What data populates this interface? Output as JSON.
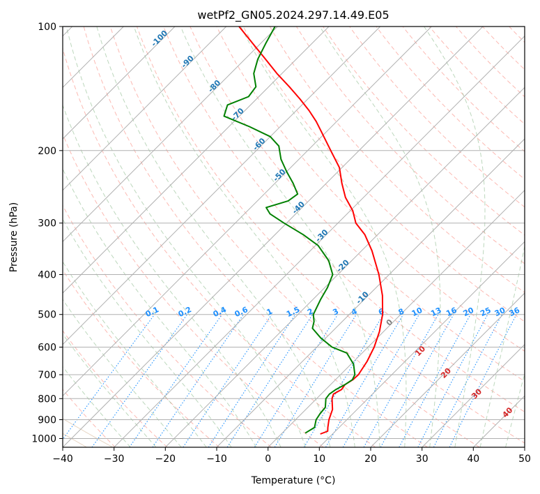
{
  "chart_data": {
    "type": "skew-t",
    "title": "wetPf2_GN05.2024.297.14.49.E05",
    "xlabel": "Temperature (°C)",
    "ylabel": "Pressure (hPa)",
    "xlim": [
      -40,
      50
    ],
    "ylim": [
      1050,
      100
    ],
    "y_scale": "log",
    "grid": true,
    "x_ticks": [
      -40,
      -30,
      -20,
      -10,
      0,
      10,
      20,
      30,
      40,
      50
    ],
    "x_tick_labels": [
      "−40",
      "−30",
      "−20",
      "−10",
      "0",
      "10",
      "20",
      "30",
      "40",
      "50"
    ],
    "y_ticks": [
      100,
      200,
      300,
      400,
      500,
      600,
      700,
      800,
      900,
      1000
    ],
    "y_tick_labels": [
      "100",
      "200",
      "300",
      "400",
      "500",
      "600",
      "700",
      "800",
      "900",
      "1000"
    ],
    "colors": {
      "temperature": "#ff0000",
      "dewpoint": "#008000",
      "isotherm_label": "#1f77b4",
      "mixing_ratio": "#1e90ff",
      "dry_adiabat": "#fa8072",
      "moist_adiabat": "#8fbc8f",
      "theta_e_label": "#d62728",
      "grid": "#b0b0b0"
    },
    "isotherm_labels": [
      "-100",
      "-90",
      "-80",
      "-70",
      "-60",
      "-50",
      "-40",
      "-30",
      "-20",
      "-10"
    ],
    "mixing_ratio_labels": [
      "0.1",
      "0.2",
      "0.4",
      "0.6",
      "1",
      "1.5",
      "2",
      "3",
      "4",
      "6",
      "8",
      "10",
      "13",
      "16",
      "20",
      "25",
      "30",
      "36"
    ],
    "theta_e_labels": [
      "0",
      "10",
      "20",
      "30",
      "40"
    ],
    "series": [
      {
        "key": "temperature",
        "pressure": [
          975,
          960,
          940,
          900,
          850,
          800,
          780,
          760,
          740,
          720,
          700,
          650,
          600,
          550,
          500,
          450,
          400,
          350,
          320,
          300,
          280,
          260,
          240,
          220,
          200,
          180,
          170,
          160,
          150,
          140,
          130,
          120,
          110,
          100
        ],
        "values": [
          7.6,
          8.5,
          7.8,
          6.5,
          5.2,
          3.0,
          2.4,
          3.1,
          2.8,
          3.4,
          3.5,
          2.6,
          1.2,
          -0.8,
          -3.5,
          -7.2,
          -12.0,
          -18.0,
          -22.5,
          -26.5,
          -29.5,
          -33.5,
          -37.0,
          -40.5,
          -45.5,
          -51.0,
          -54.0,
          -57.5,
          -61.5,
          -66.0,
          -71.0,
          -76.0,
          -81.5,
          -87.5
        ]
      },
      {
        "key": "dewpoint",
        "pressure": [
          970,
          940,
          900,
          870,
          840,
          800,
          780,
          760,
          740,
          720,
          700,
          660,
          620,
          600,
          570,
          540,
          520,
          500,
          460,
          430,
          400,
          370,
          340,
          320,
          300,
          285,
          275,
          265,
          255,
          240,
          225,
          210,
          195,
          185,
          175,
          165,
          155,
          148,
          140,
          130,
          120,
          110,
          100
        ],
        "values": [
          4.5,
          5.2,
          4.0,
          3.6,
          3.4,
          1.8,
          1.6,
          2.0,
          2.8,
          3.3,
          2.8,
          0.5,
          -3.0,
          -7.0,
          -11.0,
          -14.5,
          -15.5,
          -17.0,
          -18.5,
          -19.5,
          -21.0,
          -24.5,
          -29.5,
          -34.5,
          -40.5,
          -45.0,
          -47.0,
          -44.0,
          -43.5,
          -46.5,
          -50.0,
          -53.5,
          -56.5,
          -60.0,
          -66.0,
          -73.0,
          -74.5,
          -72.0,
          -72.5,
          -75.5,
          -77.5,
          -79.0,
          -80.5
        ]
      }
    ]
  }
}
